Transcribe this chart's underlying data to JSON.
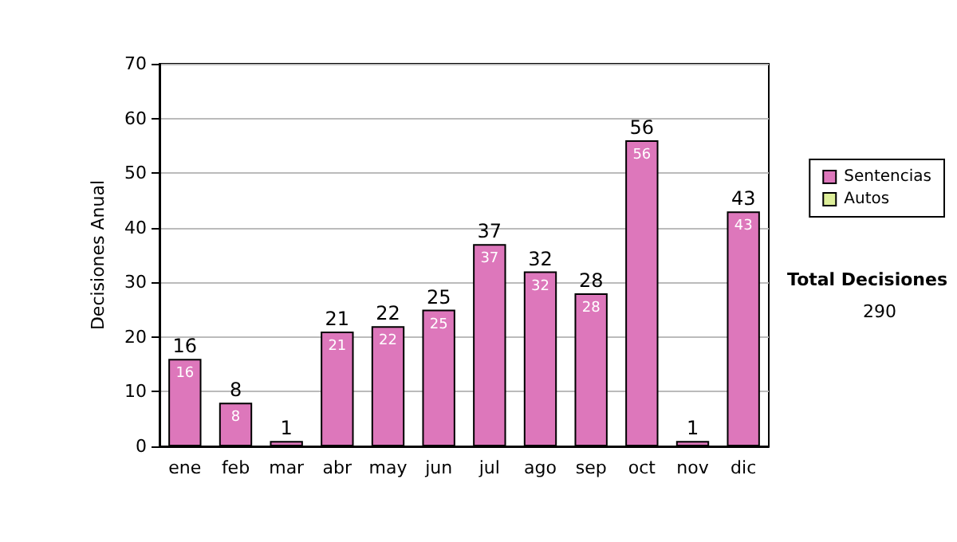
{
  "chart_data": {
    "type": "bar",
    "stacked": true,
    "ylabel": "Decisiones Anual",
    "categories": [
      "ene",
      "feb",
      "mar",
      "abr",
      "may",
      "jun",
      "jul",
      "ago",
      "sep",
      "oct",
      "nov",
      "dic"
    ],
    "series": [
      {
        "name": "Sentencias",
        "color": "#dd77bb",
        "values": [
          16,
          8,
          1,
          21,
          22,
          25,
          37,
          32,
          28,
          56,
          1,
          43
        ],
        "value_labels": [
          "16",
          "8",
          null,
          "21",
          "22",
          "25",
          "37",
          "32",
          "28",
          "56",
          null,
          "43"
        ]
      },
      {
        "name": "Autos",
        "color": "#ddee99",
        "values": [
          null,
          null,
          null,
          null,
          null,
          null,
          null,
          null,
          null,
          null,
          null,
          null
        ]
      }
    ],
    "totals": [
      "16",
      "8",
      "1",
      "21",
      "22",
      "25",
      "37",
      "32",
      "28",
      "56",
      "1",
      "43"
    ],
    "ylim": [
      0,
      70
    ],
    "yticks": [
      0,
      10,
      20,
      30,
      40,
      50,
      60,
      70
    ],
    "grid": "y",
    "legend": "right",
    "annotations": [
      "Total Decisiones",
      "290"
    ]
  }
}
